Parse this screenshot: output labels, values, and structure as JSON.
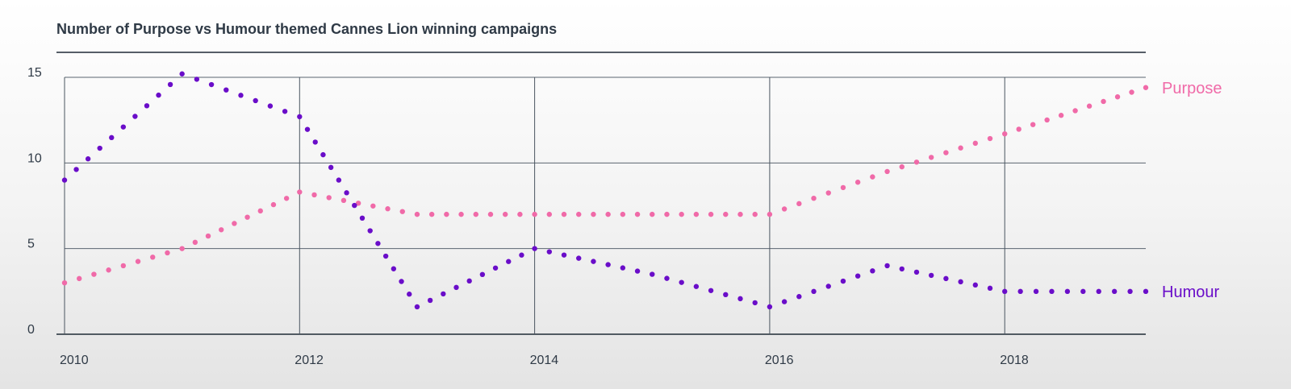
{
  "chart_data": {
    "type": "line",
    "title": "Number of Purpose vs Humour themed Cannes Lion winning campaigns",
    "xlabel": "",
    "ylabel": "",
    "xlim": [
      2010,
      2019.2
    ],
    "ylim": [
      0,
      15
    ],
    "x_ticks": [
      2010,
      2012,
      2014,
      2016,
      2018
    ],
    "y_ticks": [
      0,
      5,
      10,
      15
    ],
    "grid": true,
    "line_style": "dotted",
    "series": [
      {
        "name": "Purpose",
        "color": "#f06aa8",
        "x": [
          2010,
          2011,
          2012,
          2013,
          2014,
          2015,
          2016,
          2017,
          2018,
          2019.2
        ],
        "y": [
          3,
          5,
          8.3,
          7,
          7,
          7,
          7,
          9.5,
          11.7,
          14.4
        ]
      },
      {
        "name": "Humour",
        "color": "#6a0dc9",
        "x": [
          2010,
          2011,
          2012,
          2013,
          2014,
          2015,
          2016,
          2017,
          2018,
          2019.2
        ],
        "y": [
          9,
          15.2,
          12.7,
          1.6,
          5,
          3.5,
          1.6,
          4,
          2.5,
          2.5
        ]
      }
    ]
  }
}
